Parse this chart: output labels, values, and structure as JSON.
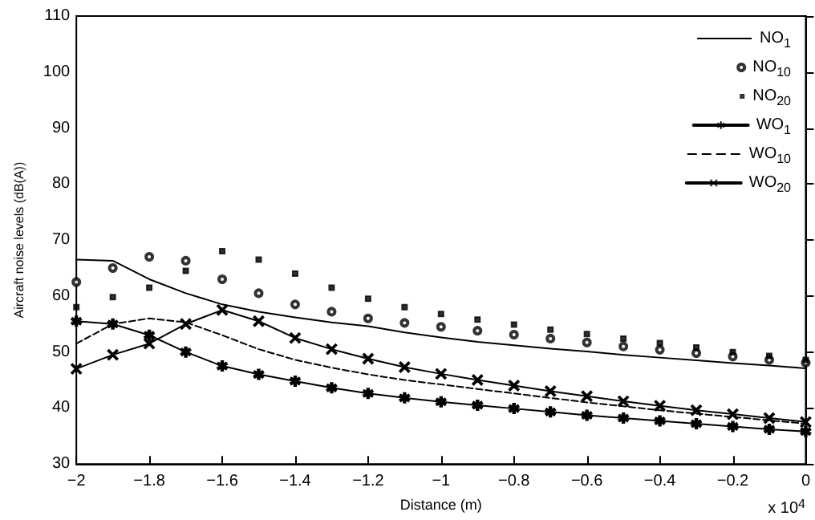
{
  "chart_data": {
    "type": "line",
    "xlabel": "Distance (m)",
    "ylabel": "Aircraft noise levels (dB(A))",
    "annotations": [
      "x 10$^{4}$"
    ],
    "x": [
      -2,
      -1.9,
      -1.8,
      -1.7,
      -1.6,
      -1.5,
      -1.4,
      -1.3,
      -1.2,
      -1.1,
      -1,
      -0.9,
      -0.8,
      -0.7,
      -0.6,
      -0.5,
      -0.4,
      -0.3,
      -0.2,
      -0.1,
      0
    ],
    "xlim": [
      -2,
      0
    ],
    "xticks": [
      -2,
      -1.8,
      -1.6,
      -1.4,
      -1.2,
      -1,
      -0.8,
      -0.6,
      -0.4,
      -0.2,
      0
    ],
    "ylim": [
      30,
      110
    ],
    "yticks": [
      30,
      40,
      50,
      60,
      70,
      80,
      90,
      100,
      110
    ],
    "grid": false,
    "legend": "top right",
    "series": [
      {
        "name": "NO$_{1}$",
        "color": "#000000",
        "marker": "none",
        "line_style": "solid",
        "values": [
          66.5,
          66.3,
          63,
          60.5,
          58.5,
          57.2,
          56.2,
          55.3,
          54.6,
          53.5,
          52.6,
          51.8,
          51.2,
          50.6,
          50.1,
          49.5,
          49,
          48.5,
          48,
          47.6,
          47.1
        ]
      },
      {
        "name": "NO$_{10}$",
        "type": "scatter",
        "color": "#000000",
        "marker": "circle",
        "values": [
          62.5,
          65,
          67,
          66.3,
          63,
          60.5,
          58.5,
          57.2,
          56,
          55.2,
          54.5,
          53.8,
          53.1,
          52.4,
          51.7,
          51,
          50.4,
          49.8,
          49.2,
          48.6,
          48.1
        ]
      },
      {
        "name": "NO$_{20}$",
        "type": "scatter",
        "color": "#000000",
        "marker": "square",
        "values": [
          58,
          59.8,
          61.5,
          64.5,
          68,
          66.5,
          64,
          61.5,
          59.5,
          58,
          56.8,
          55.8,
          54.9,
          54,
          53.2,
          52.4,
          51.6,
          50.8,
          50,
          49.3,
          48.6
        ]
      },
      {
        "name": "WO$_{1}$",
        "color": "#000000",
        "marker": "star",
        "line_style": "solid",
        "values": [
          55.5,
          55,
          53,
          50,
          47.5,
          46,
          44.8,
          43.6,
          42.6,
          41.8,
          41.1,
          40.5,
          39.9,
          39.3,
          38.7,
          38.2,
          37.7,
          37.2,
          36.7,
          36.2,
          35.8
        ]
      },
      {
        "name": "WO$_{10}$",
        "color": "#000000",
        "marker": "none",
        "line_style": "dashed",
        "values": [
          51.5,
          55,
          56,
          55.3,
          53,
          50.5,
          48.6,
          47.2,
          46,
          45,
          44.2,
          43.4,
          42.6,
          41.8,
          41,
          40.3,
          39.6,
          39,
          38.4,
          37.8,
          37.2
        ]
      },
      {
        "name": "WO$_{20}$",
        "color": "#000000",
        "marker": "cross",
        "line_style": "solid",
        "values": [
          47,
          49.5,
          51.5,
          55,
          57.5,
          55.5,
          52.5,
          50.5,
          48.8,
          47.3,
          46.1,
          45,
          44,
          43,
          42.1,
          41.2,
          40.4,
          39.6,
          38.9,
          38.2,
          37.5
        ]
      }
    ]
  }
}
